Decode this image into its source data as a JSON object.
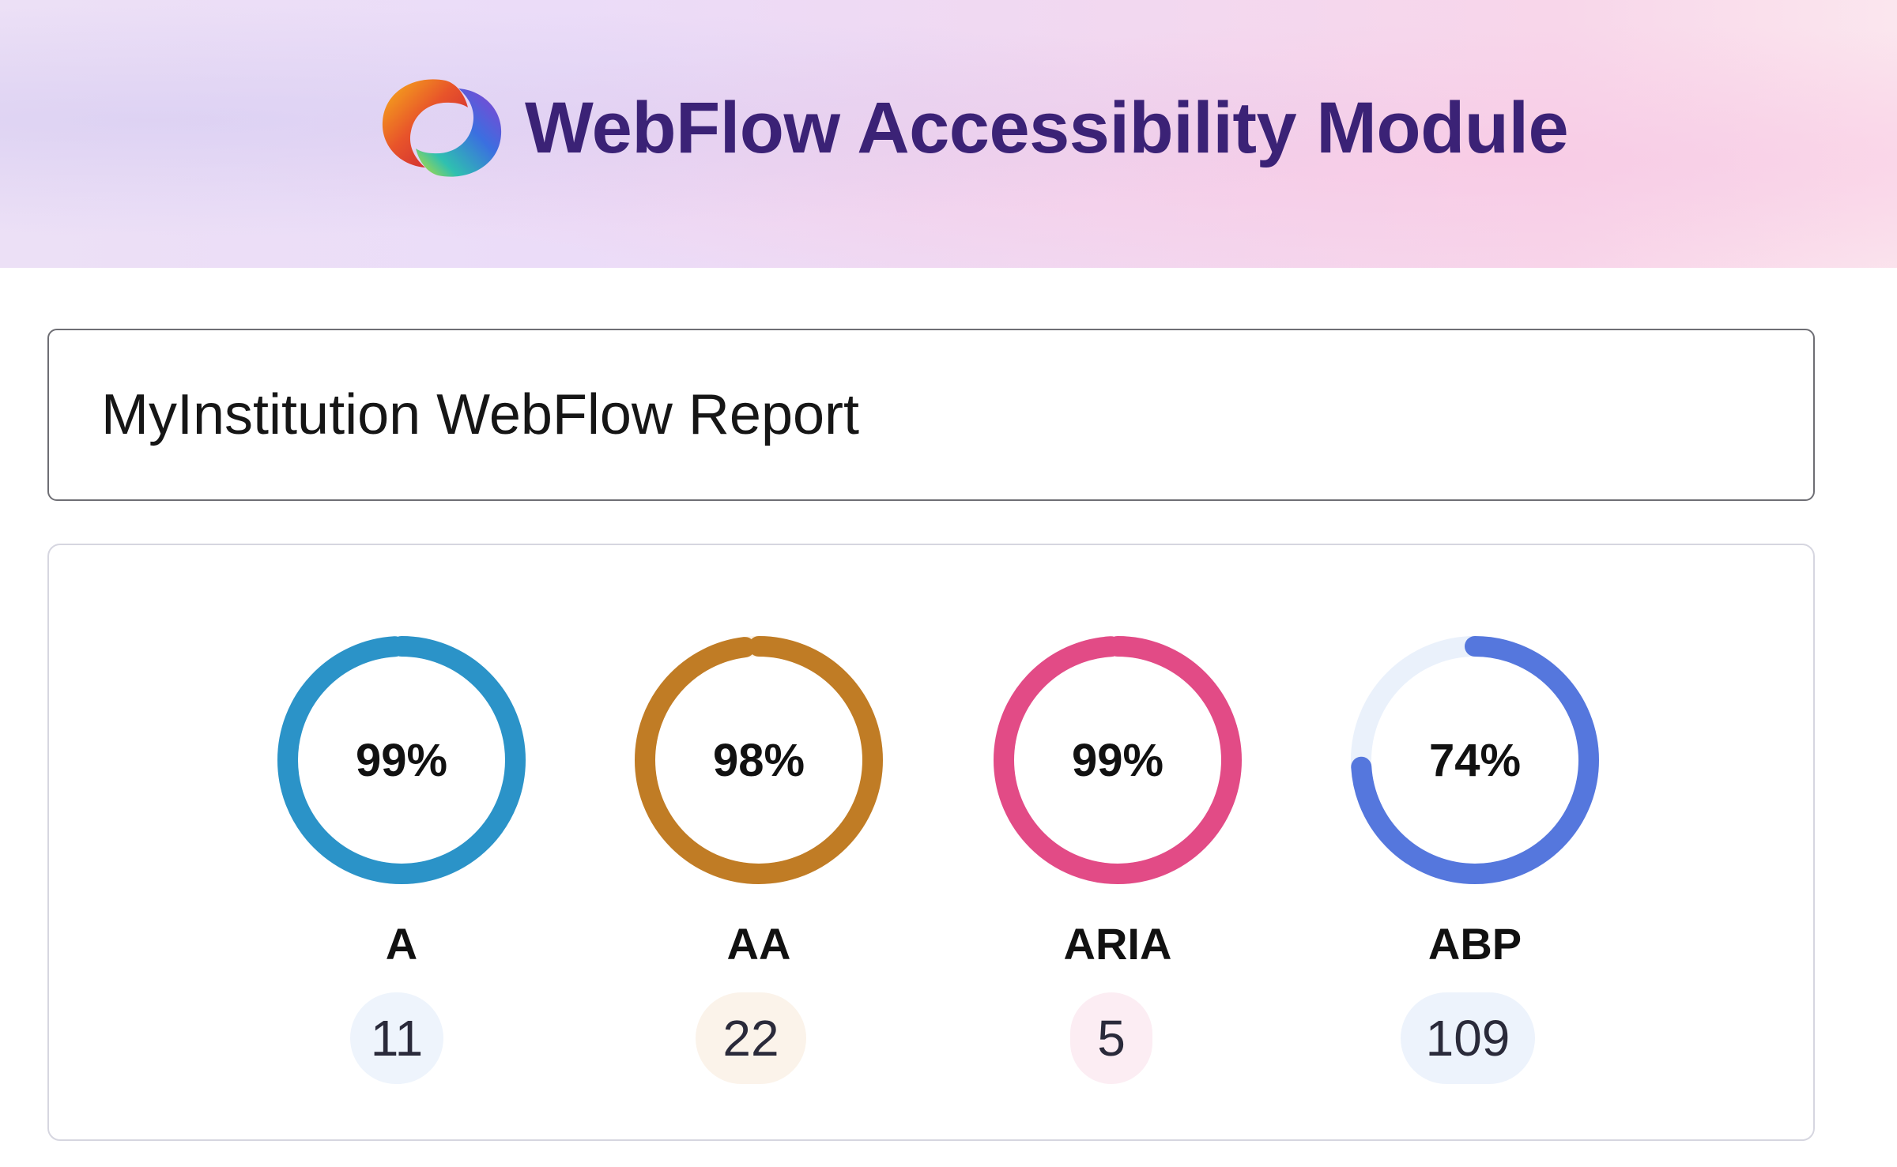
{
  "header": {
    "title": "WebFlow Accessibility Module",
    "logo_icon": "swirl-logo-icon"
  },
  "report": {
    "title": "MyInstitution WebFlow Report"
  },
  "metrics": [
    {
      "label": "A",
      "percent_text": "99%",
      "percent": 99,
      "count": "11",
      "color": "#2b93c8",
      "track_color": "#eaf3fb",
      "badge_bg": "#eef4fc"
    },
    {
      "label": "AA",
      "percent_text": "98%",
      "percent": 98,
      "count": "22",
      "color": "#c07c25",
      "track_color": "#fbf1e4",
      "badge_bg": "#fbf3ea"
    },
    {
      "label": "ARIA",
      "percent_text": "99%",
      "percent": 99,
      "count": "5",
      "color": "#e24b86",
      "track_color": "#fceaf1",
      "badge_bg": "#fcedf3"
    },
    {
      "label": "ABP",
      "percent_text": "74%",
      "percent": 74,
      "count": "109",
      "color": "#5577dd",
      "track_color": "#eaf1fb",
      "badge_bg": "#edf3fc"
    }
  ]
}
